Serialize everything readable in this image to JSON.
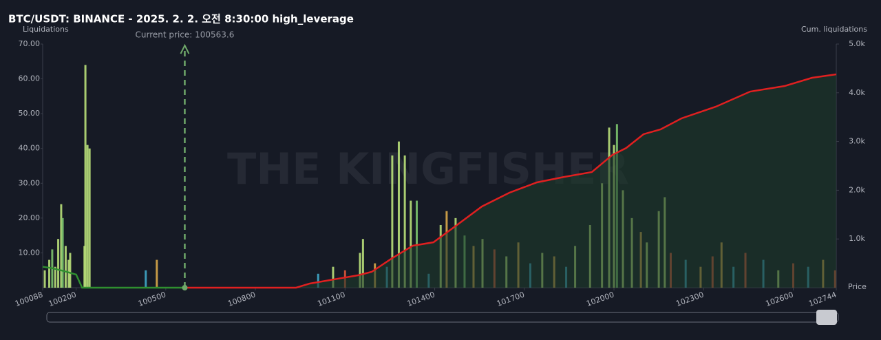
{
  "chart_data": {
    "type": "bar",
    "title": "BTC/USDT: BINANCE - 2025. 2. 2. 오전 8:30:00 high_leverage",
    "ylabel": "Liquidations",
    "y2label": "Cum. liquidations",
    "xlabel": "Price",
    "watermark": "THE KINGFISHER",
    "annotation": {
      "text": "Current price: 100563.6",
      "x": 100563.6,
      "color": "#6fa86a"
    },
    "xlim": [
      100088,
      102744
    ],
    "xticks": [
      100088,
      100200,
      100500,
      100800,
      101100,
      101400,
      101700,
      102000,
      102300,
      102600,
      102744
    ],
    "ylim": [
      0,
      70
    ],
    "yticks": [
      {
        "value": 10,
        "label": "10.00"
      },
      {
        "value": 20,
        "label": "20.00"
      },
      {
        "value": 30,
        "label": "30.00"
      },
      {
        "value": 40,
        "label": "40.00"
      },
      {
        "value": 50,
        "label": "50.00"
      },
      {
        "value": 60,
        "label": "60.00"
      },
      {
        "value": 70,
        "label": "70.00"
      }
    ],
    "y2lim": [
      0,
      5000
    ],
    "y2ticks": [
      {
        "value": 1000,
        "label": "1.0k"
      },
      {
        "value": 2000,
        "label": "2.0k"
      },
      {
        "value": 3000,
        "label": "3.0k"
      },
      {
        "value": 4000,
        "label": "4.0k"
      },
      {
        "value": 5000,
        "label": "5.0k"
      }
    ],
    "x": [
      100095,
      100110,
      100120,
      100130,
      100140,
      100150,
      100155,
      100165,
      100175,
      100180,
      100228,
      100231,
      100238,
      100245,
      100433,
      100470,
      101010,
      101060,
      101100,
      101150,
      101160,
      101200,
      101240,
      101258,
      101280,
      101300,
      101320,
      101340,
      101380,
      101420,
      101440,
      101470,
      101500,
      101530,
      101560,
      101600,
      101640,
      101680,
      101720,
      101760,
      101800,
      101840,
      101870,
      101920,
      101960,
      101984,
      102000,
      102010,
      102030,
      102060,
      102090,
      102110,
      102150,
      102170,
      102190,
      102240,
      102290,
      102330,
      102360,
      102400,
      102440,
      102500,
      102550,
      102600,
      102650,
      102700,
      102740
    ],
    "values": [
      5,
      8,
      11,
      6,
      14,
      24,
      20,
      12,
      8,
      10,
      12,
      64,
      41,
      40,
      5,
      8,
      4,
      6,
      5,
      10,
      14,
      7,
      6,
      38,
      42,
      38,
      25,
      25,
      4,
      18,
      22,
      20,
      15,
      12,
      14,
      11,
      9,
      13,
      7,
      10,
      9,
      6,
      12,
      18,
      30,
      46,
      41,
      47,
      28,
      20,
      16,
      13,
      22,
      26,
      10,
      8,
      6,
      9,
      13,
      6,
      10,
      8,
      5,
      7,
      6,
      8,
      5
    ],
    "colors": [
      "#b9e07a",
      "#b9e07a",
      "#7cc46e",
      "#b9e07a",
      "#b9e07a",
      "#b9e07a",
      "#7cc46e",
      "#b9e07a",
      "#b9e07a",
      "#b9e07a",
      "#b9e07a",
      "#b9e07a",
      "#b9e07a",
      "#b9e07a",
      "#3fa7c8",
      "#d9a84a",
      "#3fa7c8",
      "#b9e07a",
      "#d9573b",
      "#b9e07a",
      "#b9e07a",
      "#d9a84a",
      "#3fa7c8",
      "#b9e07a",
      "#b9e07a",
      "#b9e07a",
      "#b9e07a",
      "#7cc46e",
      "#3fa7c8",
      "#b9e07a",
      "#d9a84a",
      "#b9e07a",
      "#7cc46e",
      "#d9a84a",
      "#b9e07a",
      "#d9573b",
      "#b9e07a",
      "#d9a84a",
      "#3fa7c8",
      "#b9e07a",
      "#d9a84a",
      "#3fa7c8",
      "#b9e07a",
      "#b9e07a",
      "#b9e07a",
      "#b9e07a",
      "#b9e07a",
      "#7cc46e",
      "#b9e07a",
      "#b9e07a",
      "#d9a84a",
      "#b9e07a",
      "#b9e07a",
      "#b9e07a",
      "#d9573b",
      "#3fa7c8",
      "#d9a84a",
      "#d9573b",
      "#d9a84a",
      "#3fa7c8",
      "#d9573b",
      "#3fa7c8",
      "#b9e07a",
      "#d9573b",
      "#3fa7c8",
      "#d9a84a",
      "#d9573b"
    ],
    "lines": [
      {
        "color": "#2f8f2f",
        "axis": "y2",
        "x": [
          100088,
          100120,
          100160,
          100200,
          100220,
          100563.6
        ],
        "values": [
          430,
          400,
          340,
          270,
          0,
          0
        ]
      },
      {
        "color": "#e02020",
        "axis": "y2",
        "x": [
          100563.6,
          100936,
          100982,
          101143,
          101189,
          101258,
          101327,
          101396,
          101465,
          101558,
          101650,
          101742,
          101834,
          101926,
          101995,
          102041,
          102099,
          102156,
          102226,
          102341,
          102456,
          102571,
          102663,
          102744
        ],
        "values": [
          0,
          0,
          85,
          254,
          325,
          607,
          862,
          932,
          1243,
          1667,
          1949,
          2161,
          2274,
          2373,
          2726,
          2867,
          3150,
          3249,
          3475,
          3715,
          4025,
          4138,
          4308,
          4379
        ]
      }
    ]
  }
}
